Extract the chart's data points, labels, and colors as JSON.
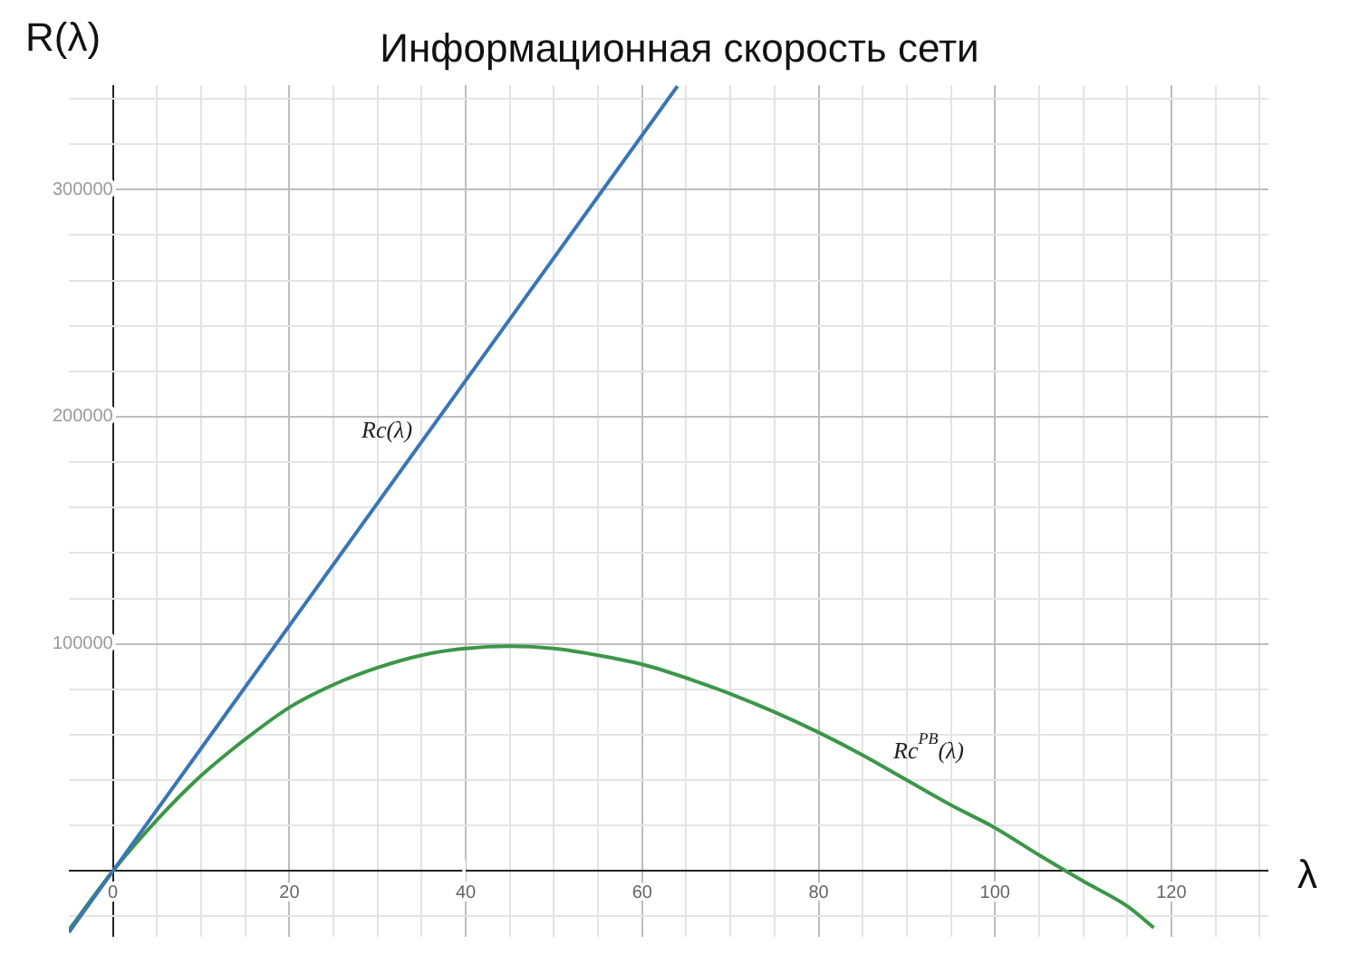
{
  "chart_data": {
    "type": "line",
    "title": "Информационная скорость сети",
    "xlabel": "λ",
    "ylabel": "R(λ)",
    "xlim": [
      -5,
      131
    ],
    "ylim": [
      -29000,
      346000
    ],
    "xticks": [
      {
        "value": 0,
        "label": "0"
      },
      {
        "value": 5,
        "label": null
      },
      {
        "value": 10,
        "label": null
      },
      {
        "value": 15,
        "label": null
      },
      {
        "value": 20,
        "label": "20"
      },
      {
        "value": 25,
        "label": null
      },
      {
        "value": 30,
        "label": null
      },
      {
        "value": 35,
        "label": null
      },
      {
        "value": 40,
        "label": "40"
      },
      {
        "value": 45,
        "label": null
      },
      {
        "value": 50,
        "label": null
      },
      {
        "value": 55,
        "label": null
      },
      {
        "value": 60,
        "label": "60"
      },
      {
        "value": 65,
        "label": null
      },
      {
        "value": 70,
        "label": null
      },
      {
        "value": 75,
        "label": null
      },
      {
        "value": 80,
        "label": "80"
      },
      {
        "value": 85,
        "label": null
      },
      {
        "value": 90,
        "label": null
      },
      {
        "value": 95,
        "label": null
      },
      {
        "value": 100,
        "label": "100"
      },
      {
        "value": 105,
        "label": null
      },
      {
        "value": 110,
        "label": null
      },
      {
        "value": 115,
        "label": null
      },
      {
        "value": 120,
        "label": "120"
      },
      {
        "value": 125,
        "label": null
      },
      {
        "value": 130,
        "label": null
      }
    ],
    "yticks": [
      {
        "value": -20000,
        "label": null
      },
      {
        "value": 0,
        "label": null
      },
      {
        "value": 20000,
        "label": null
      },
      {
        "value": 40000,
        "label": null
      },
      {
        "value": 60000,
        "label": null
      },
      {
        "value": 80000,
        "label": null
      },
      {
        "value": 100000,
        "label": "100000"
      },
      {
        "value": 120000,
        "label": null
      },
      {
        "value": 140000,
        "label": null
      },
      {
        "value": 160000,
        "label": null
      },
      {
        "value": 180000,
        "label": null
      },
      {
        "value": 200000,
        "label": "200000"
      },
      {
        "value": 220000,
        "label": null
      },
      {
        "value": 240000,
        "label": null
      },
      {
        "value": 260000,
        "label": null
      },
      {
        "value": 280000,
        "label": null
      },
      {
        "value": 300000,
        "label": "300000"
      },
      {
        "value": 320000,
        "label": null
      },
      {
        "value": 340000,
        "label": null
      }
    ],
    "grid": true,
    "legend": false,
    "marker": "none",
    "line_style": "solid",
    "series": [
      {
        "name": "Rc(λ)",
        "color": "#3a75b5",
        "x": [
          -5,
          0,
          64
        ],
        "values": [
          -27000,
          0,
          345600
        ]
      },
      {
        "name": "Rc$^{PB}$(λ)",
        "color": "#3c9648",
        "x": [
          -5,
          0,
          5,
          10,
          15,
          20,
          25,
          30,
          35,
          40,
          45,
          50,
          55,
          60,
          65,
          70,
          75,
          80,
          85,
          90,
          95,
          100,
          105,
          110,
          115,
          118
        ],
        "values": [
          -26000,
          0,
          22500,
          42000,
          58000,
          72000,
          82000,
          89500,
          95000,
          98000,
          99000,
          98000,
          95000,
          91000,
          85000,
          78000,
          70000,
          61000,
          51000,
          40000,
          29000,
          19000,
          7000,
          -4500,
          -15500,
          -25000
        ]
      }
    ]
  }
}
